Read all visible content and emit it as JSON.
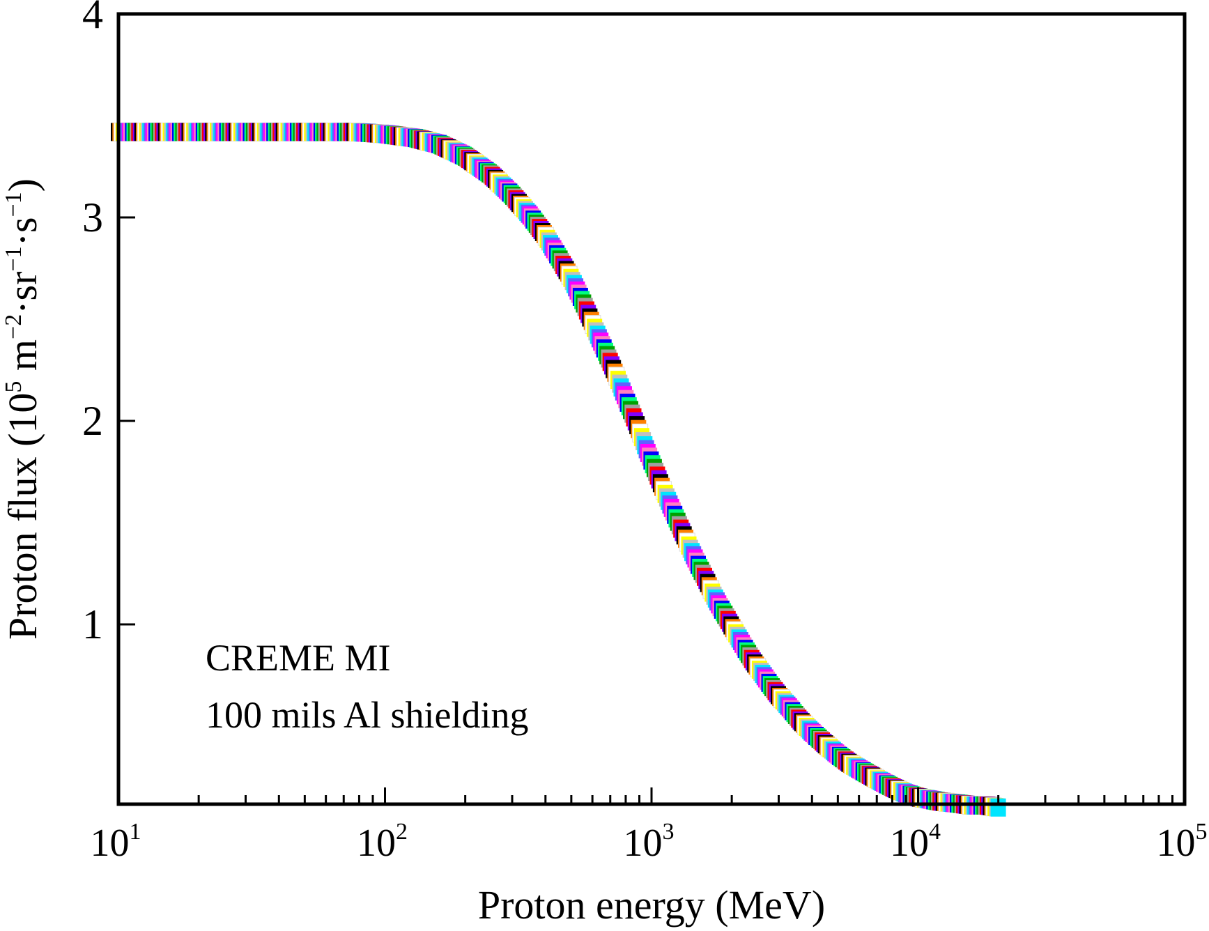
{
  "chart_data": {
    "type": "scatter",
    "title": "",
    "xlabel": "Proton energy (MeV)",
    "ylabel": {
      "prefix": "Proton flux (10",
      "exp": "5",
      "mid1": " m",
      "exp2": "−2",
      "mid2": "·sr",
      "exp3": "−1",
      "mid3": "·s",
      "exp4": "−1",
      "suffix": ")"
    },
    "x_scale": "log",
    "xlim": [
      10,
      100000
    ],
    "ylim": [
      0.1,
      4
    ],
    "x_ticks": [
      {
        "value": 10,
        "base": "10",
        "exp": "1"
      },
      {
        "value": 100,
        "base": "10",
        "exp": "2"
      },
      {
        "value": 1000,
        "base": "10",
        "exp": "3"
      },
      {
        "value": 10000,
        "base": "10",
        "exp": "4"
      },
      {
        "value": 100000,
        "base": "10",
        "exp": "5"
      }
    ],
    "y_ticks": [
      "1",
      "2",
      "3",
      "4"
    ],
    "grid": false,
    "annotations": [
      "CREME MI",
      "100 mils Al shielding"
    ],
    "series": [
      {
        "marker": "multicolored squares",
        "x": [
          10,
          13,
          17,
          22,
          28,
          36,
          46,
          60,
          77,
          100,
          130,
          160,
          200,
          250,
          300,
          350,
          400,
          450,
          500,
          550,
          600,
          650,
          700,
          750,
          800,
          850,
          900,
          950,
          1000,
          1100,
          1200,
          1300,
          1400,
          1500,
          1600,
          1700,
          1800,
          1900,
          2000,
          2200,
          2400,
          2600,
          2800,
          3000,
          3300,
          3600,
          4000,
          4500,
          5000,
          5500,
          6000,
          7000,
          8000,
          9000,
          10000,
          11000,
          12000,
          14000,
          16000,
          18000,
          20000
        ],
        "y": [
          3.42,
          3.42,
          3.42,
          3.42,
          3.42,
          3.42,
          3.42,
          3.42,
          3.42,
          3.41,
          3.39,
          3.36,
          3.3,
          3.21,
          3.11,
          3.01,
          2.91,
          2.8,
          2.7,
          2.59,
          2.48,
          2.38,
          2.29,
          2.2,
          2.11,
          2.03,
          1.95,
          1.87,
          1.8,
          1.67,
          1.56,
          1.46,
          1.37,
          1.29,
          1.22,
          1.15,
          1.09,
          1.04,
          0.99,
          0.9,
          0.82,
          0.76,
          0.7,
          0.65,
          0.59,
          0.53,
          0.47,
          0.41,
          0.36,
          0.32,
          0.29,
          0.24,
          0.2,
          0.17,
          0.15,
          0.14,
          0.13,
          0.12,
          0.11,
          0.11,
          0.1
        ]
      }
    ],
    "marker_colors": [
      "#000000",
      "#ff0000",
      "#00a000",
      "#0000ff",
      "#ff00ff",
      "#00e5ff",
      "#ffff00",
      "#ff8000",
      "#8000ff",
      "#a0a0a0",
      "#00ff80",
      "#ff80c0",
      "#6060ff",
      "#c0c0c0",
      "#ffffff"
    ]
  }
}
